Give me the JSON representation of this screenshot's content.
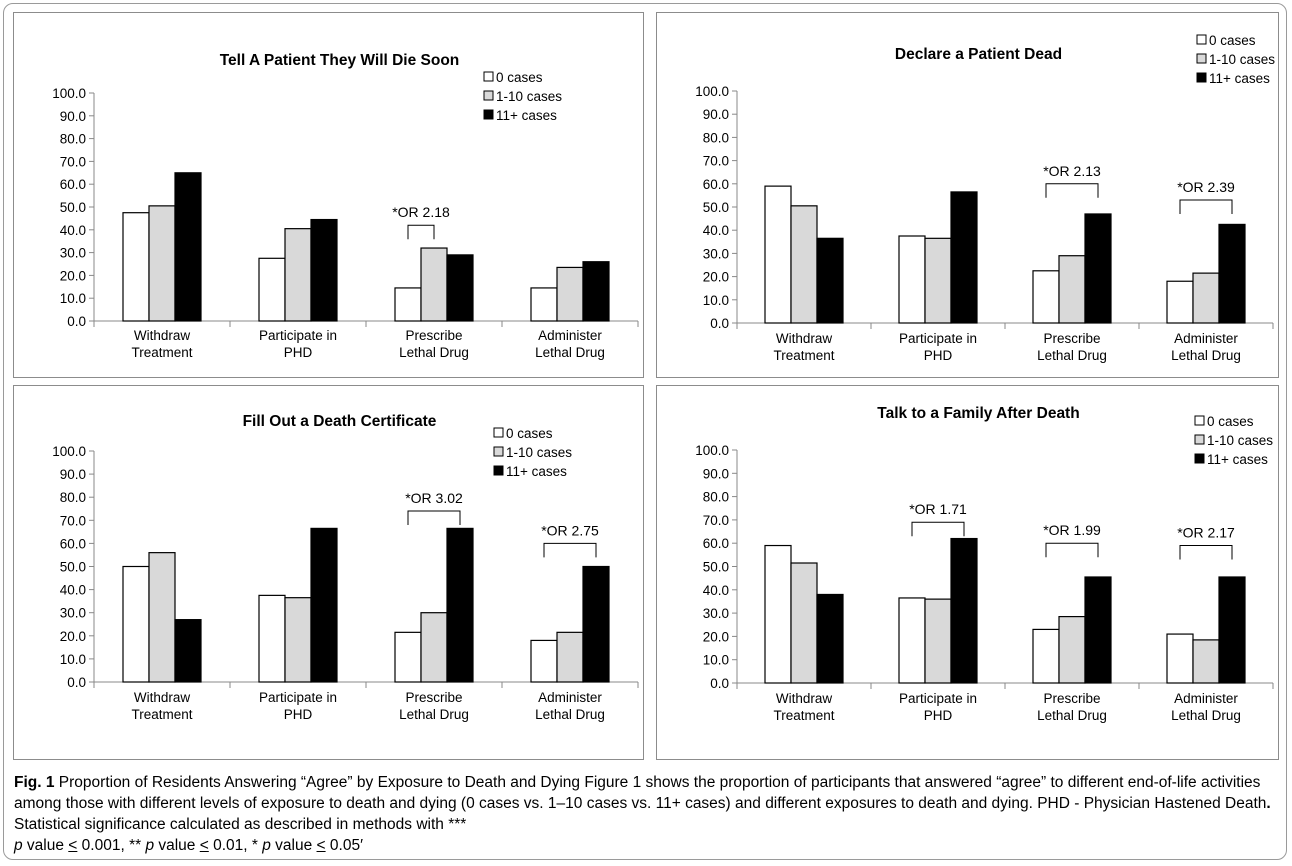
{
  "chart_data": [
    {
      "type": "bar",
      "title": "Tell A Patient They Will Die Soon",
      "categories": [
        [
          "Withdraw",
          "Treatment"
        ],
        [
          "Participate in",
          "PHD"
        ],
        [
          "Prescribe",
          "Lethal Drug"
        ],
        [
          "Administer",
          "Lethal Drug"
        ]
      ],
      "series": [
        {
          "name": "0 cases",
          "values": [
            47.5,
            27.5,
            14.5,
            14.5
          ]
        },
        {
          "name": "1-10 cases",
          "values": [
            50.5,
            40.5,
            32.0,
            23.5
          ]
        },
        {
          "name": "11+ cases",
          "values": [
            65.0,
            44.5,
            29.0,
            26.0
          ]
        }
      ],
      "ylim": [
        0,
        100
      ],
      "yticks": [
        "0.0",
        "10.0",
        "20.0",
        "30.0",
        "40.0",
        "50.0",
        "60.0",
        "70.0",
        "80.0",
        "90.0",
        "100.0"
      ],
      "legend_position": "top-right",
      "annotations": [
        {
          "text": "*OR 2.18",
          "category": 2,
          "from_series": 0,
          "to_series": 1,
          "level": 42
        }
      ]
    },
    {
      "type": "bar",
      "title": "Declare a Patient Dead",
      "categories": [
        [
          "Withdraw",
          "Treatment"
        ],
        [
          "Participate in",
          "PHD"
        ],
        [
          "Prescribe",
          "Lethal Drug"
        ],
        [
          "Administer",
          "Lethal Drug"
        ]
      ],
      "series": [
        {
          "name": "0 cases",
          "values": [
            59.0,
            37.5,
            22.5,
            18.0
          ]
        },
        {
          "name": "1-10 cases",
          "values": [
            50.5,
            36.5,
            29.0,
            21.5
          ]
        },
        {
          "name": "11+ cases",
          "values": [
            36.5,
            56.5,
            47.0,
            42.5
          ]
        }
      ],
      "ylim": [
        0,
        100
      ],
      "yticks": [
        "0.0",
        "10.0",
        "20.0",
        "30.0",
        "40.0",
        "50.0",
        "60.0",
        "70.0",
        "80.0",
        "90.0",
        "100.0"
      ],
      "legend_position": "top-right",
      "annotations": [
        {
          "text": "*OR 2.13",
          "category": 2,
          "from_series": 0,
          "to_series": 2,
          "level": 60
        },
        {
          "text": "*OR 2.39",
          "category": 3,
          "from_series": 0,
          "to_series": 2,
          "level": 53
        }
      ]
    },
    {
      "type": "bar",
      "title": "Fill Out a Death Certificate",
      "categories": [
        [
          "Withdraw",
          "Treatment"
        ],
        [
          "Participate in",
          "PHD"
        ],
        [
          "Prescribe",
          "Lethal Drug"
        ],
        [
          "Administer",
          "Lethal Drug"
        ]
      ],
      "series": [
        {
          "name": "0 cases",
          "values": [
            50.0,
            37.5,
            21.5,
            18.0
          ]
        },
        {
          "name": "1-10 cases",
          "values": [
            56.0,
            36.5,
            30.0,
            21.5
          ]
        },
        {
          "name": "11+ cases",
          "values": [
            27.0,
            66.5,
            66.5,
            50.0
          ]
        }
      ],
      "ylim": [
        0,
        100
      ],
      "yticks": [
        "0.0",
        "10.0",
        "20.0",
        "30.0",
        "40.0",
        "50.0",
        "60.0",
        "70.0",
        "80.0",
        "90.0",
        "100.0"
      ],
      "legend_position": "top-right",
      "annotations": [
        {
          "text": "*OR 3.02",
          "category": 2,
          "from_series": 0,
          "to_series": 2,
          "level": 74
        },
        {
          "text": "*OR 2.75",
          "category": 3,
          "from_series": 0,
          "to_series": 2,
          "level": 60
        }
      ]
    },
    {
      "type": "bar",
      "title": "Talk to a Family After Death",
      "categories": [
        [
          "Withdraw",
          "Treatment"
        ],
        [
          "Participate in",
          "PHD"
        ],
        [
          "Prescribe",
          "Lethal Drug"
        ],
        [
          "Administer",
          "Lethal Drug"
        ]
      ],
      "series": [
        {
          "name": "0 cases",
          "values": [
            59.0,
            36.5,
            23.0,
            21.0
          ]
        },
        {
          "name": "1-10 cases",
          "values": [
            51.5,
            36.0,
            28.5,
            18.5
          ]
        },
        {
          "name": "11+ cases",
          "values": [
            38.0,
            62.0,
            45.5,
            45.5
          ]
        }
      ],
      "ylim": [
        0,
        100
      ],
      "yticks": [
        "0.0",
        "10.0",
        "20.0",
        "30.0",
        "40.0",
        "50.0",
        "60.0",
        "70.0",
        "80.0",
        "90.0",
        "100.0"
      ],
      "legend_position": "top-right",
      "annotations": [
        {
          "text": "*OR 1.71",
          "category": 1,
          "from_series": 0,
          "to_series": 2,
          "level": 69
        },
        {
          "text": "*OR 1.99",
          "category": 2,
          "from_series": 0,
          "to_series": 2,
          "level": 60
        },
        {
          "text": "*OR 2.17",
          "category": 3,
          "from_series": 0,
          "to_series": 2,
          "level": 59
        }
      ]
    }
  ],
  "series_colors": [
    "#ffffff",
    "#d9d9d9",
    "#000000"
  ],
  "caption": {
    "fig_label": "Fig. 1",
    "text": " Proportion of Residents Answering “Agree” by Exposure to Death and Dying Figure 1 shows the proportion of participants that answered “agree” to different end-of-life activities among those with different levels of exposure to death and dying (0 cases vs. 1–10 cases vs. 11+ cases) and different exposures to death and dying. PHD - Physician Hastened Death",
    "dot": ".",
    "text2": " Statistical significance calculated as described in methods with ***",
    "p1": "p",
    "t1": " value ",
    "le1": "<",
    "t2": " 0.001, ** ",
    "p2": "p",
    "t3": " value ",
    "le2": "<",
    "t4": " 0.01, * ",
    "p3": "p",
    "t5": " value ",
    "le3": "<",
    "t6": " 0.05′"
  }
}
